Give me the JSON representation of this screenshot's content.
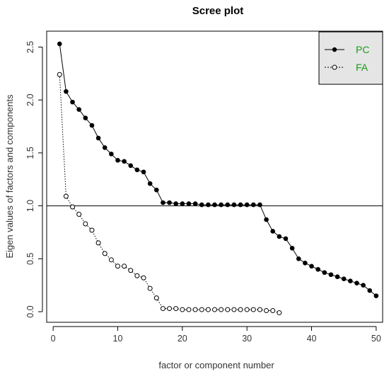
{
  "chart_data": {
    "type": "line",
    "title": "Scree plot",
    "xlabel": "factor or component number",
    "ylabel": "Eigen values of factors and components",
    "xlim": [
      -1,
      51
    ],
    "ylim": [
      -0.1,
      2.65
    ],
    "xticks": [
      0,
      10,
      20,
      30,
      40,
      50
    ],
    "yticks": [
      0.0,
      0.5,
      1.0,
      1.5,
      2.0,
      2.5
    ],
    "xtick_labels": [
      "0",
      "10",
      "20",
      "30",
      "40",
      "50"
    ],
    "ytick_labels": [
      "0.0",
      "0.5",
      "1.0",
      "1.5",
      "2.0",
      "2.5"
    ],
    "reference_line": {
      "y": 1.0
    },
    "legend_position": "top-right",
    "legend_text_color": "#1a9a1a",
    "series": [
      {
        "name": "PC",
        "marker": "filled-circle",
        "line": "solid",
        "x": [
          1,
          2,
          3,
          4,
          5,
          6,
          7,
          8,
          9,
          10,
          11,
          12,
          13,
          14,
          15,
          16,
          17,
          18,
          19,
          20,
          21,
          22,
          23,
          24,
          25,
          26,
          27,
          28,
          29,
          30,
          31,
          32,
          33,
          34,
          35,
          36,
          37,
          38,
          39,
          40,
          41,
          42,
          43,
          44,
          45,
          46,
          47,
          48,
          49,
          50
        ],
        "values": [
          2.53,
          2.08,
          1.98,
          1.91,
          1.83,
          1.76,
          1.64,
          1.55,
          1.49,
          1.43,
          1.42,
          1.38,
          1.34,
          1.32,
          1.21,
          1.15,
          1.03,
          1.03,
          1.02,
          1.02,
          1.02,
          1.02,
          1.01,
          1.01,
          1.01,
          1.01,
          1.01,
          1.01,
          1.01,
          1.01,
          1.01,
          1.01,
          0.87,
          0.76,
          0.71,
          0.69,
          0.6,
          0.5,
          0.46,
          0.43,
          0.4,
          0.37,
          0.35,
          0.33,
          0.31,
          0.29,
          0.27,
          0.25,
          0.2,
          0.15
        ]
      },
      {
        "name": "FA",
        "marker": "open-circle",
        "line": "dotted",
        "x": [
          1,
          2,
          3,
          4,
          5,
          6,
          7,
          8,
          9,
          10,
          11,
          12,
          13,
          14,
          15,
          16,
          17,
          18,
          19,
          20,
          21,
          22,
          23,
          24,
          25,
          26,
          27,
          28,
          29,
          30,
          31,
          32,
          33,
          34,
          35
        ],
        "values": [
          2.24,
          1.09,
          0.99,
          0.92,
          0.83,
          0.77,
          0.65,
          0.55,
          0.49,
          0.43,
          0.43,
          0.39,
          0.34,
          0.32,
          0.22,
          0.13,
          0.03,
          0.03,
          0.03,
          0.02,
          0.02,
          0.02,
          0.02,
          0.02,
          0.02,
          0.02,
          0.02,
          0.02,
          0.02,
          0.02,
          0.02,
          0.02,
          0.01,
          0.01,
          -0.01
        ]
      }
    ]
  }
}
